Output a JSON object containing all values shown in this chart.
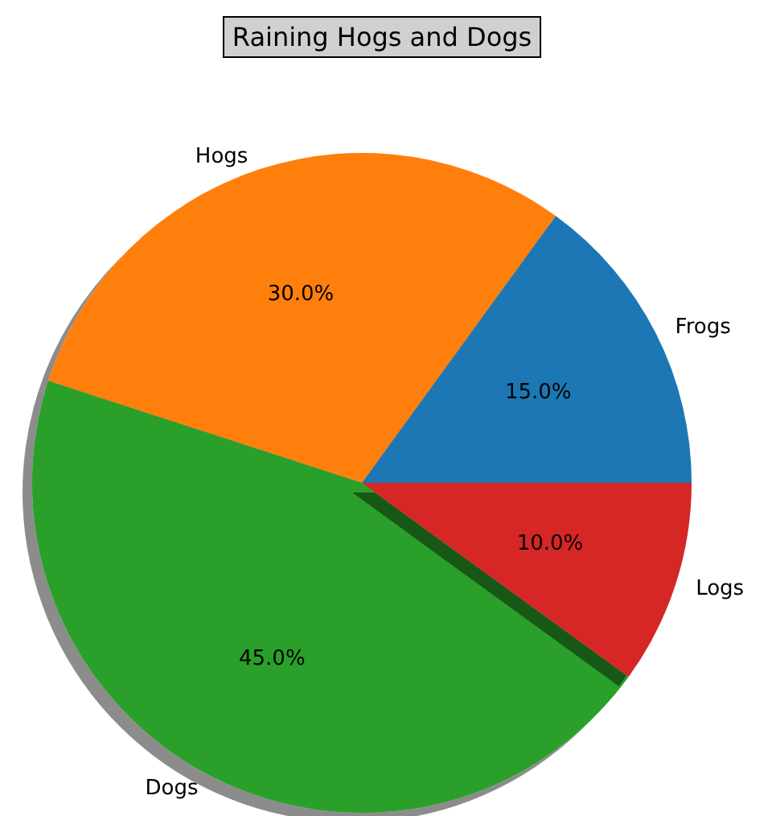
{
  "chart_data": {
    "type": "pie",
    "title": "Raining Hogs and Dogs",
    "categories": [
      "Frogs",
      "Hogs",
      "Dogs",
      "Logs"
    ],
    "values": [
      15,
      30,
      45,
      10
    ],
    "colors": [
      "#1f77b4",
      "#ff7f0e",
      "#2ca02c",
      "#d62728"
    ],
    "value_labels": [
      "15.0%",
      "30.0%",
      "45.0%",
      "10.0%"
    ],
    "legend": false
  }
}
